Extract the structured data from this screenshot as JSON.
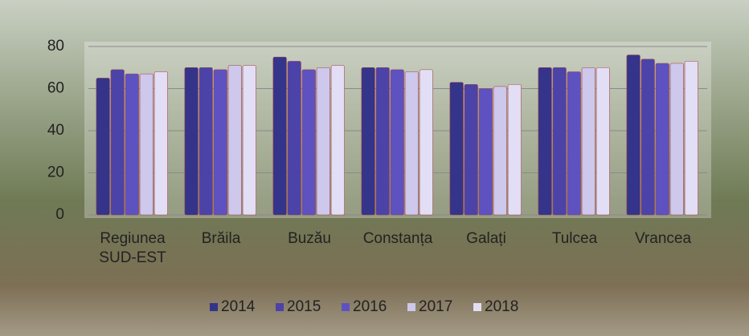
{
  "chart_data": {
    "type": "bar",
    "categories": [
      "Regiunea SUD-EST",
      "Brăila",
      "Buzău",
      "Constanța",
      "Galați",
      "Tulcea",
      "Vrancea"
    ],
    "series": [
      {
        "name": "2014",
        "color": "#34348a",
        "values": [
          65,
          70,
          75,
          70,
          63,
          70,
          76
        ]
      },
      {
        "name": "2015",
        "color": "#4c43a8",
        "values": [
          69,
          70,
          73,
          70,
          62,
          70,
          74
        ]
      },
      {
        "name": "2016",
        "color": "#5e52c0",
        "values": [
          67,
          69,
          69,
          69,
          60,
          68,
          72
        ]
      },
      {
        "name": "2017",
        "color": "#cdc8ec",
        "values": [
          67,
          71,
          70,
          68,
          61,
          70,
          72
        ]
      },
      {
        "name": "2018",
        "color": "#e2def5",
        "values": [
          68,
          71,
          71,
          69,
          62,
          70,
          73
        ]
      }
    ],
    "ylim": [
      0,
      80
    ],
    "yticks": [
      0,
      20,
      40,
      60,
      80
    ],
    "grid": true,
    "legend": "bottom"
  }
}
